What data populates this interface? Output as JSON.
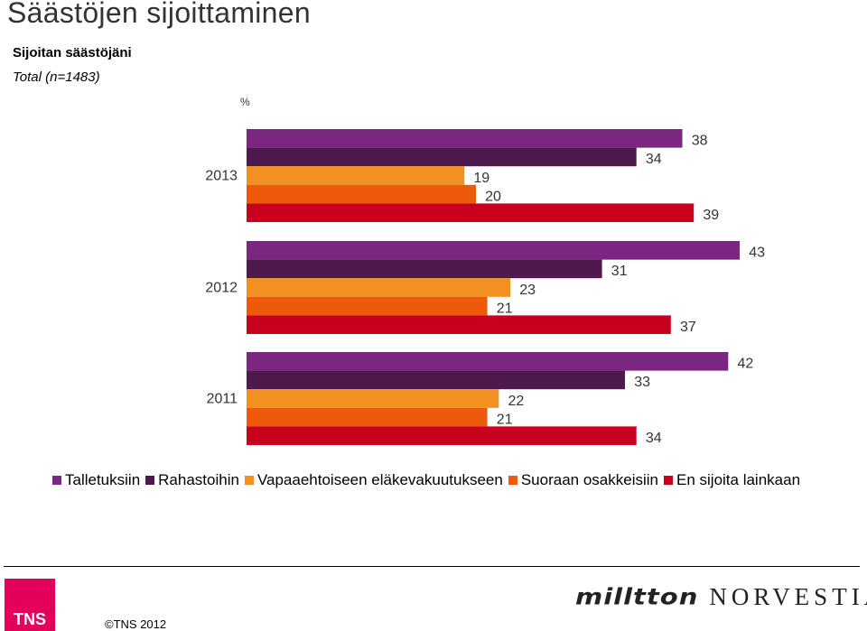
{
  "header": {
    "title": "Säästöjen sijoittaminen",
    "subtitle": "Sijoitan säästöjäni",
    "base": "Total (n=1483)",
    "unit": "%"
  },
  "chart_data": {
    "type": "bar",
    "orientation": "horizontal",
    "title": "Sijoitan säästöjäni",
    "unit": "%",
    "categories": [
      "2013",
      "2012",
      "2011"
    ],
    "series": [
      {
        "name": "Talletuksiin",
        "color": "#7B2680",
        "values": [
          38,
          43,
          42
        ]
      },
      {
        "name": "Rahastoihin",
        "color": "#4E1A4E",
        "values": [
          34,
          31,
          33
        ]
      },
      {
        "name": "Vapaaehtoiseen eläkevakuutukseen",
        "color": "#F29022",
        "values": [
          19,
          23,
          22
        ]
      },
      {
        "name": "Suoraan osakkeisiin",
        "color": "#EE5A0C",
        "values": [
          20,
          21,
          21
        ]
      },
      {
        "name": "En sijoita lainkaan",
        "color": "#C8001E",
        "values": [
          39,
          37,
          34
        ]
      }
    ],
    "xlim": [
      0,
      100
    ],
    "legend_position": "bottom"
  },
  "footer": {
    "logo_text": "TNS",
    "copyright": "©TNS 2012",
    "partner_1": "milltton",
    "partner_2": "NORVESTIA"
  }
}
